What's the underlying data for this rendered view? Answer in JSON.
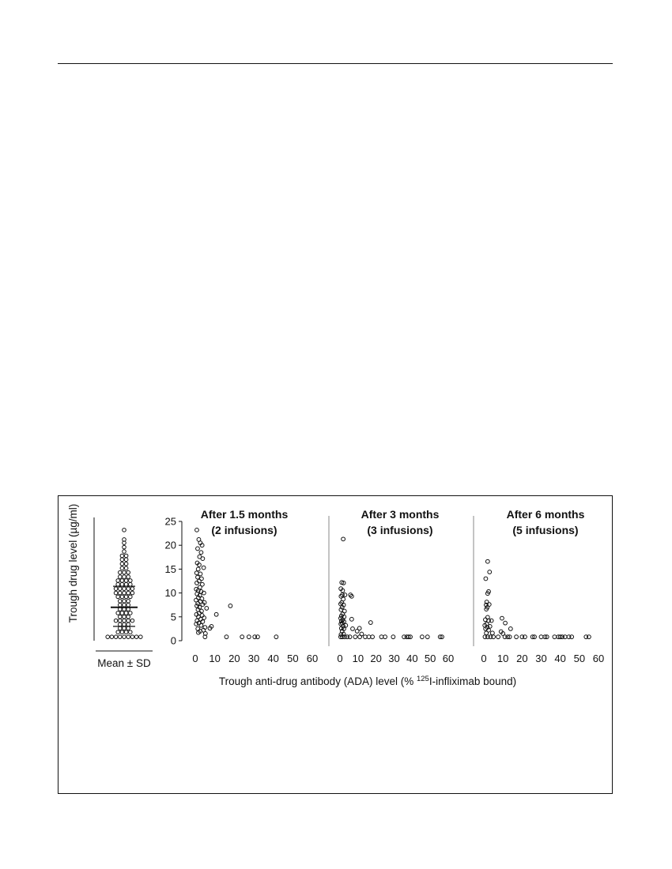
{
  "chart_data": [
    {
      "type": "scatter",
      "kind": "dot-plot",
      "xlabel": "Mean ± SD",
      "ylabel": "Trough drug level (µg/ml)",
      "ylim": [
        0,
        25
      ],
      "mean": 7.0,
      "sd_bars": [
        3.0,
        11.4
      ],
      "rows": [
        {
          "y": 23.2,
          "n": 1
        },
        {
          "y": 21.2,
          "n": 1
        },
        {
          "y": 20.5,
          "n": 1
        },
        {
          "y": 19.6,
          "n": 1
        },
        {
          "y": 18.7,
          "n": 1
        },
        {
          "y": 17.8,
          "n": 2
        },
        {
          "y": 17.0,
          "n": 2
        },
        {
          "y": 16.1,
          "n": 2
        },
        {
          "y": 15.2,
          "n": 2
        },
        {
          "y": 14.3,
          "n": 3
        },
        {
          "y": 13.4,
          "n": 3
        },
        {
          "y": 12.6,
          "n": 4
        },
        {
          "y": 11.8,
          "n": 4
        },
        {
          "y": 10.9,
          "n": 5
        },
        {
          "y": 10.0,
          "n": 5
        },
        {
          "y": 9.2,
          "n": 4
        },
        {
          "y": 8.3,
          "n": 3
        },
        {
          "y": 7.5,
          "n": 3
        },
        {
          "y": 6.6,
          "n": 3
        },
        {
          "y": 5.8,
          "n": 4
        },
        {
          "y": 5.0,
          "n": 3
        },
        {
          "y": 4.2,
          "n": 5
        },
        {
          "y": 3.4,
          "n": 3
        },
        {
          "y": 2.6,
          "n": 3
        },
        {
          "y": 1.8,
          "n": 4
        },
        {
          "y": 0.8,
          "n": 9
        }
      ]
    },
    {
      "type": "scatter",
      "title": "After 1.5 months",
      "subtitle": "(2 infusions)",
      "xlim": [
        0,
        60
      ],
      "ylim": [
        0,
        25
      ],
      "xticks": [
        0,
        10,
        20,
        30,
        40,
        50,
        60
      ],
      "yticks": [
        0,
        5,
        10,
        15,
        20,
        25
      ],
      "points": [
        [
          0.8,
          23.2
        ],
        [
          1.8,
          21.2
        ],
        [
          2.6,
          20.5
        ],
        [
          3.5,
          20.0
        ],
        [
          1.2,
          19.3
        ],
        [
          3.0,
          18.5
        ],
        [
          2.2,
          17.6
        ],
        [
          3.8,
          17.2
        ],
        [
          1.0,
          16.3
        ],
        [
          2.0,
          15.9
        ],
        [
          4.3,
          15.3
        ],
        [
          1.5,
          15.0
        ],
        [
          0.7,
          14.2
        ],
        [
          2.6,
          14.0
        ],
        [
          1.2,
          13.3
        ],
        [
          3.2,
          13.0
        ],
        [
          2.0,
          12.5
        ],
        [
          0.8,
          12.1
        ],
        [
          3.6,
          11.8
        ],
        [
          2.4,
          11.2
        ],
        [
          0.5,
          10.8
        ],
        [
          1.5,
          10.5
        ],
        [
          3.0,
          10.3
        ],
        [
          4.4,
          10.0
        ],
        [
          0.9,
          9.8
        ],
        [
          2.3,
          9.5
        ],
        [
          1.6,
          9.0
        ],
        [
          3.4,
          8.8
        ],
        [
          0.4,
          8.5
        ],
        [
          2.6,
          8.2
        ],
        [
          4.7,
          8.0
        ],
        [
          1.3,
          7.8
        ],
        [
          3.8,
          7.6
        ],
        [
          0.8,
          7.3
        ],
        [
          2.2,
          7.0
        ],
        [
          18.0,
          7.3
        ],
        [
          5.8,
          6.8
        ],
        [
          1.4,
          6.5
        ],
        [
          3.2,
          6.2
        ],
        [
          2.0,
          5.8
        ],
        [
          0.6,
          5.5
        ],
        [
          3.5,
          5.3
        ],
        [
          10.8,
          5.5
        ],
        [
          1.6,
          5.0
        ],
        [
          4.5,
          4.8
        ],
        [
          2.8,
          4.5
        ],
        [
          0.9,
          4.2
        ],
        [
          3.8,
          4.0
        ],
        [
          1.8,
          3.7
        ],
        [
          0.5,
          3.5
        ],
        [
          3.0,
          3.2
        ],
        [
          8.3,
          3.0
        ],
        [
          5.0,
          2.8
        ],
        [
          7.5,
          2.6
        ],
        [
          1.3,
          2.5
        ],
        [
          2.5,
          2.0
        ],
        [
          4.2,
          2.2
        ],
        [
          1.6,
          1.7
        ],
        [
          5.2,
          1.5
        ],
        [
          5.0,
          0.8
        ],
        [
          16.0,
          0.8
        ],
        [
          24.0,
          0.8
        ],
        [
          27.5,
          0.8
        ],
        [
          30.5,
          0.8
        ],
        [
          32.0,
          0.8
        ],
        [
          41.5,
          0.8
        ]
      ]
    },
    {
      "type": "scatter",
      "title": "After 3 months",
      "subtitle": "(3 infusions)",
      "xlim": [
        0,
        60
      ],
      "ylim": [
        0,
        25
      ],
      "xticks": [
        0,
        10,
        20,
        30,
        40,
        50,
        60
      ],
      "points": [
        [
          1.8,
          21.3
        ],
        [
          1.0,
          12.2
        ],
        [
          2.0,
          12.1
        ],
        [
          0.5,
          10.9
        ],
        [
          1.5,
          10.5
        ],
        [
          1.3,
          9.6
        ],
        [
          2.8,
          9.6
        ],
        [
          5.8,
          9.6
        ],
        [
          6.5,
          9.3
        ],
        [
          0.6,
          9.3
        ],
        [
          1.8,
          8.7
        ],
        [
          1.0,
          8.0
        ],
        [
          0.4,
          7.7
        ],
        [
          2.0,
          7.5
        ],
        [
          1.2,
          7.0
        ],
        [
          0.6,
          6.5
        ],
        [
          2.5,
          6.2
        ],
        [
          1.5,
          5.6
        ],
        [
          0.8,
          5.2
        ],
        [
          2.3,
          5.0
        ],
        [
          0.4,
          4.7
        ],
        [
          1.5,
          4.4
        ],
        [
          6.5,
          4.5
        ],
        [
          0.8,
          4.1
        ],
        [
          2.2,
          4.0
        ],
        [
          1.2,
          3.7
        ],
        [
          0.5,
          3.5
        ],
        [
          3.2,
          3.2
        ],
        [
          17.0,
          3.8
        ],
        [
          1.8,
          3.0
        ],
        [
          0.8,
          2.6
        ],
        [
          2.2,
          2.5
        ],
        [
          7.0,
          2.5
        ],
        [
          10.8,
          2.6
        ],
        [
          1.2,
          2.0
        ],
        [
          9.5,
          2.0
        ],
        [
          0.6,
          1.3
        ],
        [
          2.0,
          1.4
        ],
        [
          12.0,
          1.4
        ],
        [
          0.4,
          0.8
        ],
        [
          1.3,
          0.8
        ],
        [
          2.6,
          0.8
        ],
        [
          4.0,
          0.8
        ],
        [
          5.5,
          0.8
        ],
        [
          8.5,
          0.8
        ],
        [
          11.0,
          0.8
        ],
        [
          14.0,
          0.8
        ],
        [
          16.0,
          0.8
        ],
        [
          18.0,
          0.8
        ],
        [
          23.0,
          0.8
        ],
        [
          25.0,
          0.8
        ],
        [
          29.5,
          0.8
        ],
        [
          35.5,
          0.8
        ],
        [
          37.0,
          0.8
        ],
        [
          38.0,
          0.8
        ],
        [
          39.0,
          0.8
        ],
        [
          45.5,
          0.8
        ],
        [
          48.5,
          0.8
        ],
        [
          55.5,
          0.8
        ],
        [
          56.5,
          0.8
        ]
      ]
    },
    {
      "type": "scatter",
      "title": "After 6 months",
      "subtitle": "(5 infusions)",
      "xlim": [
        0,
        60
      ],
      "ylim": [
        0,
        25
      ],
      "xticks": [
        0,
        10,
        20,
        30,
        40,
        50,
        60
      ],
      "points": [
        [
          2.0,
          16.6
        ],
        [
          3.0,
          14.4
        ],
        [
          1.0,
          13.0
        ],
        [
          2.5,
          10.3
        ],
        [
          2.0,
          9.9
        ],
        [
          1.5,
          8.1
        ],
        [
          1.2,
          7.5
        ],
        [
          2.8,
          7.6
        ],
        [
          1.8,
          7.0
        ],
        [
          1.3,
          6.6
        ],
        [
          2.0,
          4.9
        ],
        [
          0.8,
          4.4
        ],
        [
          2.5,
          4.2
        ],
        [
          4.0,
          4.2
        ],
        [
          9.5,
          4.7
        ],
        [
          11.2,
          3.7
        ],
        [
          1.5,
          3.5
        ],
        [
          0.5,
          3.2
        ],
        [
          3.2,
          3.0
        ],
        [
          1.8,
          2.8
        ],
        [
          0.9,
          2.5
        ],
        [
          2.5,
          2.2
        ],
        [
          14.0,
          2.5
        ],
        [
          9.0,
          1.9
        ],
        [
          1.3,
          1.6
        ],
        [
          4.5,
          1.6
        ],
        [
          10.0,
          1.5
        ],
        [
          0.6,
          0.8
        ],
        [
          2.0,
          0.8
        ],
        [
          3.5,
          0.8
        ],
        [
          5.0,
          0.8
        ],
        [
          7.5,
          0.8
        ],
        [
          11.0,
          0.8
        ],
        [
          12.5,
          0.8
        ],
        [
          13.5,
          0.8
        ],
        [
          17.0,
          0.8
        ],
        [
          20.0,
          0.8
        ],
        [
          21.5,
          0.8
        ],
        [
          25.5,
          0.8
        ],
        [
          26.5,
          0.8
        ],
        [
          30.0,
          0.8
        ],
        [
          32.0,
          0.8
        ],
        [
          33.0,
          0.8
        ],
        [
          37.0,
          0.8
        ],
        [
          39.0,
          0.8
        ],
        [
          40.0,
          0.8
        ],
        [
          41.0,
          0.8
        ],
        [
          42.5,
          0.8
        ],
        [
          44.5,
          0.8
        ],
        [
          46.0,
          0.8
        ],
        [
          53.5,
          0.8
        ],
        [
          55.0,
          0.8
        ]
      ]
    }
  ],
  "shared_axes": {
    "xlabel_before_superscript": "Trough anti-drug antibody (ADA) level (% ",
    "xlabel_superscript": "125",
    "xlabel_after_superscript": "I-infliximab bound)"
  }
}
